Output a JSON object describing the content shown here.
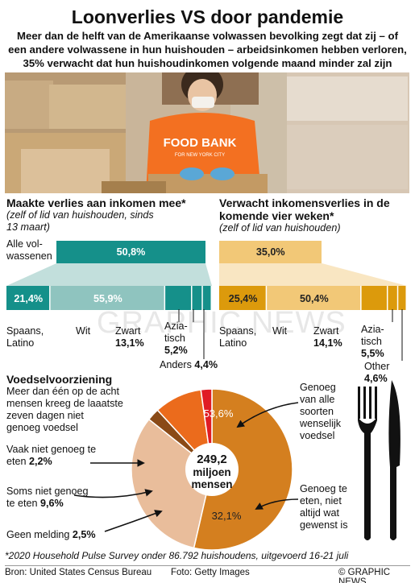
{
  "header": {
    "title": "Loonverlies VS door pandemie",
    "subtitle_lines": [
      "Meer dan de helft van de Amerikaanse volwassen bevolking zegt dat zij – of",
      "een andere volwassene in hun huishouden – arbeidsinkomen hebben verloren,",
      "35% verwacht dat hun huishoudinkomen volgende maand minder zal zijn"
    ]
  },
  "photo": {
    "text_line1": "FOOD BANK",
    "text_line2": "FOR NEW YORK CITY"
  },
  "watermark": "GRAPHIC NEWS",
  "left_section": {
    "title": "Maakte verlies aan inkomen mee*",
    "note_lines": [
      "(zelf of lid van huishouden, sinds",
      "13 maart)"
    ]
  },
  "right_section": {
    "title_lines": [
      "Verwacht inkomensverlies in de",
      "komende vier weken*"
    ],
    "note": "(zelf of lid van huishouden)"
  },
  "all_adults_label_lines": [
    "Alle vol-",
    "wassenen"
  ],
  "colors": {
    "teal": "#15908a",
    "teal_light": "#8fc4bf",
    "amber": "#dc9a0c",
    "amber_light": "#f2c877",
    "pie_brown": "#d47f1f",
    "pie_beige": "#e9bd9b",
    "pie_orange": "#eb6b1c",
    "pie_red": "#e01c24",
    "pie_darkbrown": "#8a4a17"
  },
  "chart_data": [
    {
      "type": "bar",
      "title": "Maakte verlies aan inkomen mee*",
      "categories": [
        "Alle volwassenen"
      ],
      "values": [
        50.8
      ],
      "ylim": [
        0,
        100
      ]
    },
    {
      "type": "bar",
      "title": "Maakte verlies aan inkomen mee*",
      "categories": [
        "Spaans, Latino",
        "Wit",
        "Zwart",
        "Aziatisch",
        "Anders"
      ],
      "values": [
        21.4,
        55.9,
        13.1,
        5.2,
        4.4
      ]
    },
    {
      "type": "bar",
      "title": "Verwacht inkomensverlies in de komende vier weken*",
      "categories": [
        "Alle volwassenen"
      ],
      "values": [
        35.0
      ],
      "ylim": [
        0,
        100
      ]
    },
    {
      "type": "bar",
      "title": "Verwacht inkomensverlies in de komende vier weken*",
      "categories": [
        "Spaans, Latino",
        "Wit",
        "Zwart",
        "Aziatisch",
        "Other"
      ],
      "values": [
        25.4,
        50.4,
        14.1,
        5.5,
        4.6
      ]
    },
    {
      "type": "pie",
      "title": "Voedselvoorziening",
      "categories": [
        "Genoeg van alle soorten wenselijk voedsel",
        "Genoeg te eten, niet altijd wat gewenst is",
        "Geen melding",
        "Soms niet genoeg te eten",
        "Vaak niet genoeg te eten"
      ],
      "values": [
        53.6,
        32.1,
        2.5,
        9.6,
        2.2
      ],
      "center_label": [
        "249,2",
        "miljoen",
        "mensen"
      ]
    }
  ],
  "left_bar_labels": {
    "all": "50,8%",
    "segments": [
      "21,4%",
      "55,9%"
    ]
  },
  "right_bar_labels": {
    "all": "35,0%",
    "segments": [
      "25,4%",
      "50,4%"
    ]
  },
  "left_categories": {
    "spaans": [
      "Spaans,",
      "Latino"
    ],
    "wit": "Wit",
    "zwart": "Zwart",
    "zwart_val": "13,1%",
    "aziatisch": [
      "Azia-",
      "tisch"
    ],
    "aziatisch_val": "5,2%",
    "anders": "Anders",
    "anders_val": "4,4%"
  },
  "right_categories": {
    "spaans": [
      "Spaans,",
      "Latino"
    ],
    "wit": "Wit",
    "zwart": "Zwart",
    "zwart_val": "14,1%",
    "aziatisch": [
      "Azia-",
      "tisch"
    ],
    "aziatisch_val": "5,5%",
    "other": "Other",
    "other_val": "4,6%"
  },
  "food": {
    "title": "Voedselvoorziening",
    "intro_lines": [
      "Meer dan één op de acht",
      "mensen kreeg de laaatste",
      "zeven dagen niet",
      "genoeg voedsel"
    ],
    "vaak_lines": [
      "Vaak niet genoeg te",
      "eten"
    ],
    "vaak_val": "2,2%",
    "soms_lines": [
      "Soms niet genoeg",
      "te eten"
    ],
    "soms_val": "9,6%",
    "geen": "Geen melding",
    "geen_val": "2,5%",
    "genoeg_alle_lines": [
      "Genoeg",
      "van alle",
      "soorten",
      "wenselijk",
      "voedsel"
    ],
    "genoeg_te_lines": [
      "Genoeg te",
      "eten, niet",
      "altijd wat",
      "gewenst is"
    ],
    "slice_label_1": "53,6%",
    "slice_label_2": "32,1%",
    "center_lines": [
      "249,2",
      "miljoen",
      "mensen"
    ]
  },
  "footer": {
    "footnote": "*2020 Household Pulse Survey onder 86.792 huishoudens, uitgevoerd 16-21 juli",
    "bron": "Bron: United States Census Bureau",
    "foto": "Foto: Getty Images",
    "brand": "© GRAPHIC NEWS"
  }
}
